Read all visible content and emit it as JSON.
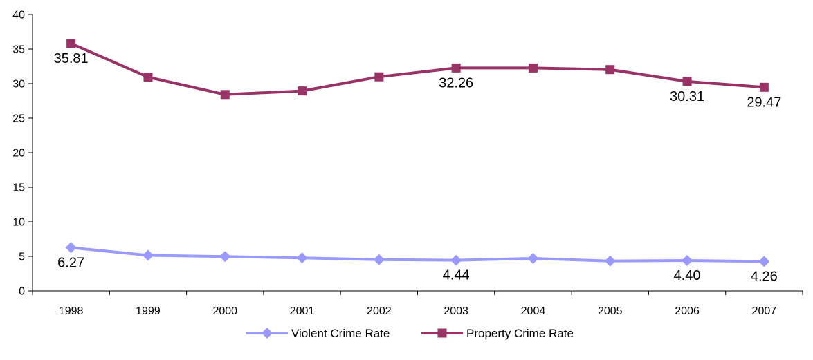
{
  "chart_data": {
    "type": "line",
    "title": "",
    "xlabel": "",
    "ylabel": "",
    "categories": [
      "1998",
      "1999",
      "2000",
      "2001",
      "2002",
      "2003",
      "2004",
      "2005",
      "2006",
      "2007"
    ],
    "ylim": [
      0,
      40
    ],
    "yticks": [
      "0",
      "5",
      "10",
      "15",
      "20",
      "25",
      "30",
      "35",
      "40"
    ],
    "grid": false,
    "legend_position": "bottom-center",
    "series": [
      {
        "name": "Violent Crime Rate",
        "color": "#9999ff",
        "marker": "diamond",
        "values": [
          6.27,
          5.15,
          4.98,
          4.78,
          4.52,
          4.44,
          4.7,
          4.33,
          4.4,
          4.26
        ],
        "labels": [
          {
            "index": 0,
            "text": "6.27",
            "position": "below"
          },
          {
            "index": 5,
            "text": "4.44",
            "position": "below"
          },
          {
            "index": 8,
            "text": "4.40",
            "position": "below"
          },
          {
            "index": 9,
            "text": "4.26",
            "position": "below"
          }
        ]
      },
      {
        "name": "Property Crime Rate",
        "color": "#993366",
        "marker": "square",
        "values": [
          35.81,
          30.94,
          28.42,
          28.94,
          30.98,
          32.26,
          32.26,
          32.03,
          30.31,
          29.47
        ],
        "labels": [
          {
            "index": 0,
            "text": "35.81",
            "position": "below"
          },
          {
            "index": 5,
            "text": "32.26",
            "position": "below"
          },
          {
            "index": 8,
            "text": "30.31",
            "position": "below"
          },
          {
            "index": 9,
            "text": "29.47",
            "position": "below"
          }
        ]
      }
    ]
  }
}
